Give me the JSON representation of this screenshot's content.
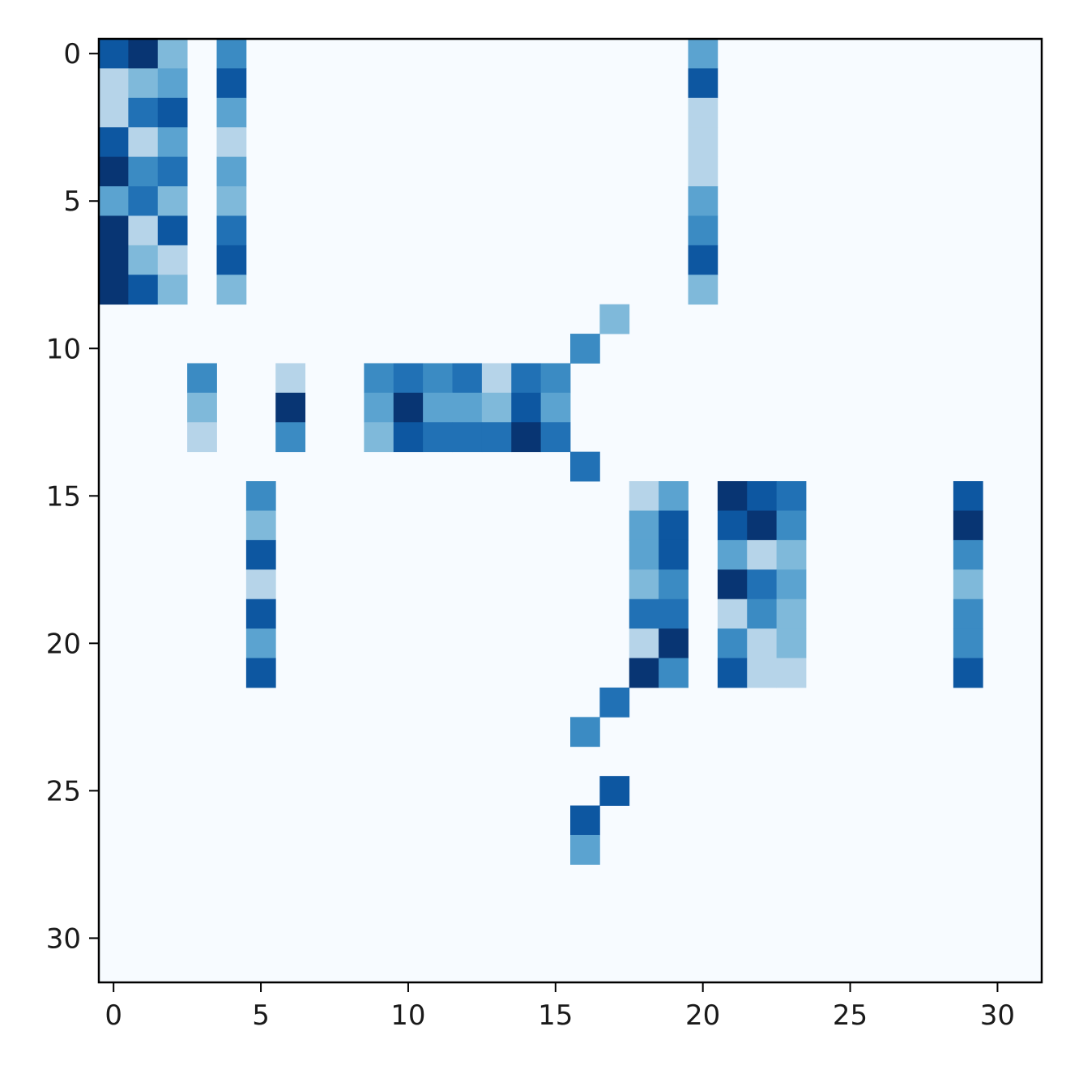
{
  "chart_data": {
    "type": "heatmap",
    "title": "",
    "xlabel": "",
    "ylabel": "",
    "colormap": "Blues",
    "background_color": "#f7fbff",
    "xlim": [
      -0.5,
      31.5
    ],
    "ylim": [
      31.5,
      -0.5
    ],
    "x_ticks": [
      "0",
      "5",
      "10",
      "15",
      "20",
      "25",
      "30"
    ],
    "y_ticks": [
      "0",
      "5",
      "10",
      "15",
      "20",
      "25",
      "30"
    ],
    "cells": [
      [
        0,
        0,
        0.85
      ],
      [
        0,
        1,
        0.98
      ],
      [
        0,
        2,
        0.45
      ],
      [
        0,
        4,
        0.65
      ],
      [
        0,
        20,
        0.55
      ],
      [
        1,
        0,
        0.3
      ],
      [
        1,
        1,
        0.45
      ],
      [
        1,
        2,
        0.55
      ],
      [
        1,
        4,
        0.85
      ],
      [
        1,
        20,
        0.85
      ],
      [
        2,
        0,
        0.3
      ],
      [
        2,
        1,
        0.75
      ],
      [
        2,
        2,
        0.85
      ],
      [
        2,
        4,
        0.55
      ],
      [
        2,
        20,
        0.3
      ],
      [
        3,
        0,
        0.85
      ],
      [
        3,
        1,
        0.3
      ],
      [
        3,
        2,
        0.55
      ],
      [
        3,
        4,
        0.3
      ],
      [
        3,
        20,
        0.3
      ],
      [
        4,
        0,
        0.98
      ],
      [
        4,
        1,
        0.65
      ],
      [
        4,
        2,
        0.75
      ],
      [
        4,
        4,
        0.55
      ],
      [
        4,
        20,
        0.3
      ],
      [
        5,
        0,
        0.55
      ],
      [
        5,
        1,
        0.75
      ],
      [
        5,
        2,
        0.45
      ],
      [
        5,
        4,
        0.45
      ],
      [
        5,
        20,
        0.55
      ],
      [
        6,
        0,
        0.98
      ],
      [
        6,
        1,
        0.3
      ],
      [
        6,
        2,
        0.85
      ],
      [
        6,
        4,
        0.75
      ],
      [
        6,
        20,
        0.65
      ],
      [
        7,
        0,
        0.98
      ],
      [
        7,
        1,
        0.45
      ],
      [
        7,
        2,
        0.3
      ],
      [
        7,
        4,
        0.85
      ],
      [
        7,
        20,
        0.85
      ],
      [
        8,
        0,
        0.98
      ],
      [
        8,
        1,
        0.85
      ],
      [
        8,
        2,
        0.45
      ],
      [
        8,
        4,
        0.45
      ],
      [
        8,
        20,
        0.45
      ],
      [
        9,
        17,
        0.45
      ],
      [
        10,
        16,
        0.65
      ],
      [
        11,
        3,
        0.65
      ],
      [
        11,
        6,
        0.3
      ],
      [
        11,
        9,
        0.65
      ],
      [
        11,
        10,
        0.75
      ],
      [
        11,
        11,
        0.65
      ],
      [
        11,
        12,
        0.75
      ],
      [
        11,
        13,
        0.3
      ],
      [
        11,
        14,
        0.75
      ],
      [
        11,
        15,
        0.65
      ],
      [
        12,
        3,
        0.45
      ],
      [
        12,
        6,
        0.98
      ],
      [
        12,
        9,
        0.55
      ],
      [
        12,
        10,
        0.98
      ],
      [
        12,
        11,
        0.55
      ],
      [
        12,
        12,
        0.55
      ],
      [
        12,
        13,
        0.45
      ],
      [
        12,
        14,
        0.85
      ],
      [
        12,
        15,
        0.55
      ],
      [
        13,
        3,
        0.3
      ],
      [
        13,
        6,
        0.65
      ],
      [
        13,
        9,
        0.45
      ],
      [
        13,
        10,
        0.85
      ],
      [
        13,
        11,
        0.75
      ],
      [
        13,
        12,
        0.75
      ],
      [
        13,
        13,
        0.75
      ],
      [
        13,
        14,
        0.98
      ],
      [
        13,
        15,
        0.75
      ],
      [
        14,
        16,
        0.75
      ],
      [
        15,
        5,
        0.65
      ],
      [
        15,
        18,
        0.3
      ],
      [
        15,
        19,
        0.55
      ],
      [
        15,
        21,
        0.98
      ],
      [
        15,
        22,
        0.85
      ],
      [
        15,
        23,
        0.75
      ],
      [
        15,
        29,
        0.85
      ],
      [
        16,
        5,
        0.45
      ],
      [
        16,
        18,
        0.55
      ],
      [
        16,
        19,
        0.85
      ],
      [
        16,
        21,
        0.85
      ],
      [
        16,
        22,
        0.98
      ],
      [
        16,
        23,
        0.65
      ],
      [
        16,
        29,
        0.98
      ],
      [
        17,
        5,
        0.85
      ],
      [
        17,
        18,
        0.55
      ],
      [
        17,
        19,
        0.85
      ],
      [
        17,
        21,
        0.55
      ],
      [
        17,
        22,
        0.3
      ],
      [
        17,
        23,
        0.45
      ],
      [
        17,
        29,
        0.65
      ],
      [
        18,
        5,
        0.3
      ],
      [
        18,
        18,
        0.45
      ],
      [
        18,
        19,
        0.65
      ],
      [
        18,
        21,
        0.98
      ],
      [
        18,
        22,
        0.75
      ],
      [
        18,
        23,
        0.55
      ],
      [
        18,
        29,
        0.45
      ],
      [
        19,
        5,
        0.85
      ],
      [
        19,
        18,
        0.75
      ],
      [
        19,
        19,
        0.75
      ],
      [
        19,
        21,
        0.3
      ],
      [
        19,
        22,
        0.65
      ],
      [
        19,
        23,
        0.45
      ],
      [
        19,
        29,
        0.65
      ],
      [
        20,
        5,
        0.55
      ],
      [
        20,
        18,
        0.3
      ],
      [
        20,
        19,
        0.98
      ],
      [
        20,
        21,
        0.65
      ],
      [
        20,
        22,
        0.3
      ],
      [
        20,
        23,
        0.45
      ],
      [
        20,
        29,
        0.65
      ],
      [
        21,
        5,
        0.85
      ],
      [
        21,
        18,
        0.98
      ],
      [
        21,
        19,
        0.65
      ],
      [
        21,
        21,
        0.85
      ],
      [
        21,
        22,
        0.3
      ],
      [
        21,
        23,
        0.3
      ],
      [
        21,
        29,
        0.85
      ],
      [
        22,
        17,
        0.75
      ],
      [
        23,
        16,
        0.65
      ],
      [
        25,
        17,
        0.85
      ],
      [
        26,
        16,
        0.85
      ],
      [
        27,
        16,
        0.55
      ]
    ]
  }
}
